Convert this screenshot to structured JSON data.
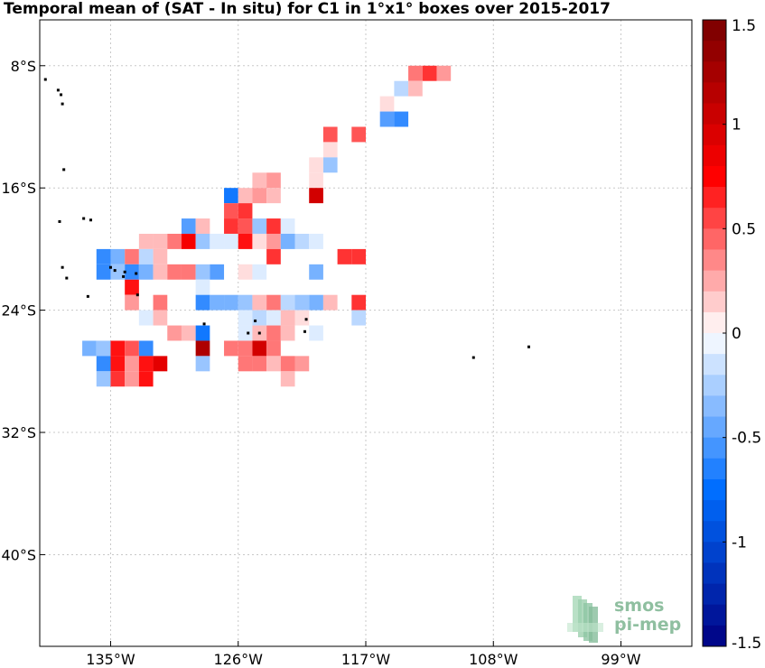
{
  "title": "Temporal mean of (SAT - In situ) for C1 in 1°x1° boxes over 2015-2017",
  "map": {
    "lon_range": [
      -140,
      -94
    ],
    "lat_range": [
      -46,
      -5
    ],
    "lon_ticks": [
      {
        "value": -135,
        "label": "135°W"
      },
      {
        "value": -126,
        "label": "126°W"
      },
      {
        "value": -117,
        "label": "117°W"
      },
      {
        "value": -108,
        "label": "108°W"
      },
      {
        "value": -99,
        "label": "99°W"
      }
    ],
    "lat_ticks": [
      {
        "value": -8,
        "label": "8°S"
      },
      {
        "value": -16,
        "label": "16°S"
      },
      {
        "value": -24,
        "label": "24°S"
      },
      {
        "value": -32,
        "label": "32°S"
      },
      {
        "value": -40,
        "label": "40°S"
      }
    ],
    "grid": true,
    "cell_size_deg": 1
  },
  "colorbar": {
    "range": [
      -1.5,
      1.5
    ],
    "ticks": [
      "1.5",
      "1",
      "0.5",
      "0",
      "-0.5",
      "-1",
      "-1.5"
    ],
    "colormap": "blue-white-red"
  },
  "logo": {
    "line1": "smos",
    "line2": "pi-mep"
  },
  "chart_data": {
    "type": "heatmap",
    "title": "Temporal mean of (SAT - In situ) for C1 in 1°x1° boxes over 2015-2017",
    "xlabel": "",
    "ylabel": "",
    "xlim": [
      -140,
      -94
    ],
    "ylim": [
      -46,
      -5
    ],
    "vlim": [
      -1.5,
      1.5
    ],
    "cells": [
      {
        "lon": -113.5,
        "lat": -8.5,
        "v": 0.4
      },
      {
        "lon": -112.5,
        "lat": -8.5,
        "v": 0.6
      },
      {
        "lon": -111.5,
        "lat": -8.5,
        "v": 0.3
      },
      {
        "lon": -114.5,
        "lat": -9.5,
        "v": -0.2
      },
      {
        "lon": -113.5,
        "lat": -9.5,
        "v": 0.2
      },
      {
        "lon": -115.5,
        "lat": -10.5,
        "v": 0.1
      },
      {
        "lon": -115.5,
        "lat": -11.5,
        "v": -0.5
      },
      {
        "lon": -114.5,
        "lat": -11.5,
        "v": -0.6
      },
      {
        "lon": -119.5,
        "lat": -12.5,
        "v": 0.5
      },
      {
        "lon": -117.5,
        "lat": -12.5,
        "v": 0.5
      },
      {
        "lon": -119.5,
        "lat": -13.5,
        "v": 0.1
      },
      {
        "lon": -119.5,
        "lat": -14.5,
        "v": -0.3
      },
      {
        "lon": -120.5,
        "lat": -14.5,
        "v": 0.1
      },
      {
        "lon": -124.5,
        "lat": -15.5,
        "v": 0.2
      },
      {
        "lon": -123.5,
        "lat": -15.5,
        "v": 0.3
      },
      {
        "lon": -120.5,
        "lat": -15.5,
        "v": 0.1
      },
      {
        "lon": -126.5,
        "lat": -16.5,
        "v": -0.7
      },
      {
        "lon": -125.5,
        "lat": -16.5,
        "v": 0.2
      },
      {
        "lon": -124.5,
        "lat": -16.5,
        "v": 0.3
      },
      {
        "lon": -123.5,
        "lat": -16.5,
        "v": 0.2
      },
      {
        "lon": -120.5,
        "lat": -16.5,
        "v": 1.0
      },
      {
        "lon": -126.5,
        "lat": -17.5,
        "v": 0.5
      },
      {
        "lon": -125.5,
        "lat": -17.5,
        "v": 0.6
      },
      {
        "lon": -129.5,
        "lat": -18.5,
        "v": -0.5
      },
      {
        "lon": -128.5,
        "lat": -18.5,
        "v": 0.2
      },
      {
        "lon": -126.5,
        "lat": -18.5,
        "v": 0.6
      },
      {
        "lon": -125.5,
        "lat": -18.5,
        "v": 0.5
      },
      {
        "lon": -124.5,
        "lat": -18.5,
        "v": -0.3
      },
      {
        "lon": -123.5,
        "lat": -18.5,
        "v": 0.6
      },
      {
        "lon": -122.5,
        "lat": -18.5,
        "v": -0.1
      },
      {
        "lon": -132.5,
        "lat": -19.5,
        "v": 0.2
      },
      {
        "lon": -131.5,
        "lat": -19.5,
        "v": 0.2
      },
      {
        "lon": -130.5,
        "lat": -19.5,
        "v": 0.4
      },
      {
        "lon": -129.5,
        "lat": -19.5,
        "v": 0.8
      },
      {
        "lon": -128.5,
        "lat": -19.5,
        "v": -0.3
      },
      {
        "lon": -127.5,
        "lat": -19.5,
        "v": -0.1
      },
      {
        "lon": -126.5,
        "lat": -19.5,
        "v": -0.1
      },
      {
        "lon": -125.5,
        "lat": -19.5,
        "v": 0.7
      },
      {
        "lon": -124.5,
        "lat": -19.5,
        "v": 0.1
      },
      {
        "lon": -123.5,
        "lat": -19.5,
        "v": 0.3
      },
      {
        "lon": -122.5,
        "lat": -19.5,
        "v": -0.4
      },
      {
        "lon": -121.5,
        "lat": -19.5,
        "v": -0.2
      },
      {
        "lon": -120.5,
        "lat": -19.5,
        "v": -0.1
      },
      {
        "lon": -135.5,
        "lat": -20.5,
        "v": -0.6
      },
      {
        "lon": -134.5,
        "lat": -20.5,
        "v": -0.4
      },
      {
        "lon": -133.5,
        "lat": -20.5,
        "v": 0.4
      },
      {
        "lon": -132.5,
        "lat": -20.5,
        "v": -0.2
      },
      {
        "lon": -131.5,
        "lat": -20.5,
        "v": 0.2
      },
      {
        "lon": -123.5,
        "lat": -20.5,
        "v": 0.6
      },
      {
        "lon": -118.5,
        "lat": -20.5,
        "v": 0.6
      },
      {
        "lon": -117.5,
        "lat": -20.5,
        "v": 0.6
      },
      {
        "lon": -135.5,
        "lat": -21.5,
        "v": -0.6
      },
      {
        "lon": -134.5,
        "lat": -21.5,
        "v": -0.3
      },
      {
        "lon": -133.5,
        "lat": -21.5,
        "v": -0.6
      },
      {
        "lon": -132.5,
        "lat": -21.5,
        "v": -0.4
      },
      {
        "lon": -131.5,
        "lat": -21.5,
        "v": 0.2
      },
      {
        "lon": -130.5,
        "lat": -21.5,
        "v": 0.4
      },
      {
        "lon": -129.5,
        "lat": -21.5,
        "v": 0.4
      },
      {
        "lon": -128.5,
        "lat": -21.5,
        "v": -0.3
      },
      {
        "lon": -127.5,
        "lat": -21.5,
        "v": -0.5
      },
      {
        "lon": -125.5,
        "lat": -21.5,
        "v": 0.1
      },
      {
        "lon": -124.5,
        "lat": -21.5,
        "v": -0.1
      },
      {
        "lon": -120.5,
        "lat": -21.5,
        "v": -0.4
      },
      {
        "lon": -133.5,
        "lat": -22.5,
        "v": 0.7
      },
      {
        "lon": -128.5,
        "lat": -22.5,
        "v": -0.1
      },
      {
        "lon": -133.5,
        "lat": -23.5,
        "v": 0.3
      },
      {
        "lon": -131.5,
        "lat": -23.5,
        "v": 0.4
      },
      {
        "lon": -128.5,
        "lat": -23.5,
        "v": -0.6
      },
      {
        "lon": -127.5,
        "lat": -23.5,
        "v": -0.4
      },
      {
        "lon": -126.5,
        "lat": -23.5,
        "v": -0.4
      },
      {
        "lon": -125.5,
        "lat": -23.5,
        "v": -0.3
      },
      {
        "lon": -124.5,
        "lat": -23.5,
        "v": 0.2
      },
      {
        "lon": -123.5,
        "lat": -23.5,
        "v": 0.4
      },
      {
        "lon": -122.5,
        "lat": -23.5,
        "v": -0.2
      },
      {
        "lon": -121.5,
        "lat": -23.5,
        "v": -0.3
      },
      {
        "lon": -120.5,
        "lat": -23.5,
        "v": -0.4
      },
      {
        "lon": -119.5,
        "lat": -23.5,
        "v": 0.2
      },
      {
        "lon": -117.5,
        "lat": -23.5,
        "v": 0.6
      },
      {
        "lon": -132.5,
        "lat": -24.5,
        "v": -0.1
      },
      {
        "lon": -131.5,
        "lat": -24.5,
        "v": 0.2
      },
      {
        "lon": -125.5,
        "lat": -24.5,
        "v": -0.1
      },
      {
        "lon": -124.5,
        "lat": -24.5,
        "v": -0.2
      },
      {
        "lon": -123.5,
        "lat": -24.5,
        "v": -0.1
      },
      {
        "lon": -122.5,
        "lat": -24.5,
        "v": 0.2
      },
      {
        "lon": -121.5,
        "lat": -24.5,
        "v": 0.1
      },
      {
        "lon": -117.5,
        "lat": -24.5,
        "v": -0.2
      },
      {
        "lon": -130.5,
        "lat": -25.5,
        "v": 0.3
      },
      {
        "lon": -129.5,
        "lat": -25.5,
        "v": 0.2
      },
      {
        "lon": -128.5,
        "lat": -25.5,
        "v": -0.7
      },
      {
        "lon": -125.5,
        "lat": -25.5,
        "v": -0.1
      },
      {
        "lon": -124.5,
        "lat": -25.5,
        "v": 0.2
      },
      {
        "lon": -123.5,
        "lat": -25.5,
        "v": 0.4
      },
      {
        "lon": -122.5,
        "lat": -25.5,
        "v": 0.2
      },
      {
        "lon": -120.5,
        "lat": -25.5,
        "v": -0.1
      },
      {
        "lon": -136.5,
        "lat": -26.5,
        "v": -0.4
      },
      {
        "lon": -135.5,
        "lat": -26.5,
        "v": -0.3
      },
      {
        "lon": -134.5,
        "lat": -26.5,
        "v": 0.7
      },
      {
        "lon": -133.5,
        "lat": -26.5,
        "v": 0.5
      },
      {
        "lon": -132.5,
        "lat": -26.5,
        "v": -0.6
      },
      {
        "lon": -128.5,
        "lat": -26.5,
        "v": 1.2
      },
      {
        "lon": -126.5,
        "lat": -26.5,
        "v": 0.4
      },
      {
        "lon": -125.5,
        "lat": -26.5,
        "v": 0.4
      },
      {
        "lon": -124.5,
        "lat": -26.5,
        "v": 1.0
      },
      {
        "lon": -123.5,
        "lat": -26.5,
        "v": 0.4
      },
      {
        "lon": -135.5,
        "lat": -27.5,
        "v": -0.6
      },
      {
        "lon": -134.5,
        "lat": -27.5,
        "v": 0.7
      },
      {
        "lon": -133.5,
        "lat": -27.5,
        "v": 0.3
      },
      {
        "lon": -132.5,
        "lat": -27.5,
        "v": 0.7
      },
      {
        "lon": -131.5,
        "lat": -27.5,
        "v": 0.9
      },
      {
        "lon": -128.5,
        "lat": -27.5,
        "v": -0.3
      },
      {
        "lon": -125.5,
        "lat": -27.5,
        "v": 0.4
      },
      {
        "lon": -124.5,
        "lat": -27.5,
        "v": 0.4
      },
      {
        "lon": -123.5,
        "lat": -27.5,
        "v": 0.2
      },
      {
        "lon": -122.5,
        "lat": -27.5,
        "v": 0.4
      },
      {
        "lon": -121.5,
        "lat": -27.5,
        "v": 0.3
      },
      {
        "lon": -135.5,
        "lat": -28.5,
        "v": -0.3
      },
      {
        "lon": -134.5,
        "lat": -28.5,
        "v": 0.6
      },
      {
        "lon": -133.5,
        "lat": -28.5,
        "v": 0.3
      },
      {
        "lon": -132.5,
        "lat": -28.5,
        "v": 0.7
      },
      {
        "lon": -122.5,
        "lat": -28.5,
        "v": 0.2
      }
    ]
  }
}
